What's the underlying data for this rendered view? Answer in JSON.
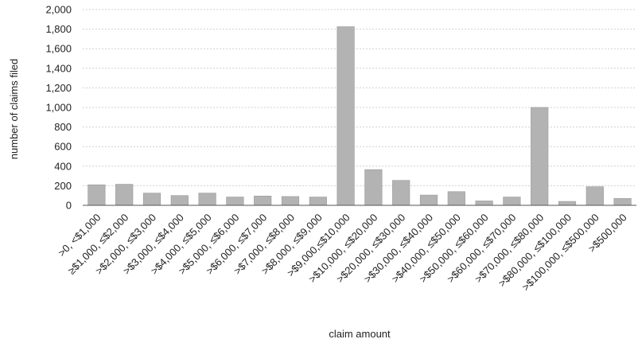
{
  "chart_data": {
    "type": "bar",
    "title": "",
    "xlabel": "claim amount",
    "ylabel": "number of claims filed",
    "ylim": [
      0,
      2000
    ],
    "yticks": [
      "0",
      "200",
      "400",
      "600",
      "800",
      "1,000",
      "1,200",
      "1,400",
      "1,600",
      "1,800",
      "2,000"
    ],
    "grid": true,
    "legend": "none",
    "bar_color": "#b3b3b3",
    "categories": [
      ">0, <$1,000",
      "≥$1,000, ≤$2,000",
      ">$2,000, ≤$3,000",
      ">$3,000, ≤$4,000",
      ">$4,000, ≤$5,000",
      ">$5,000, ≤$6,000",
      ">$6,000, ≤$7,000",
      ">$7,000, ≤$8,000",
      ">$8,000, ≤$9,000",
      ">$9,000,≤$10,000",
      ">$10,000, ≤$20,000",
      ">$20,000, ≤$30,000",
      ">$30,000, ≤$40,000",
      ">$40,000, ≤$50,000",
      ">$50,000, ≤$60,000",
      ">$60,000, ≤$70,000",
      ">$70,000, ≤$80,000",
      ">$80,000, ≤$100,000",
      ">$100,000, ≤$500,000",
      ">$500,000"
    ],
    "values": [
      210,
      215,
      125,
      100,
      125,
      85,
      95,
      90,
      85,
      1825,
      365,
      255,
      105,
      140,
      45,
      85,
      1000,
      40,
      190,
      70
    ]
  }
}
